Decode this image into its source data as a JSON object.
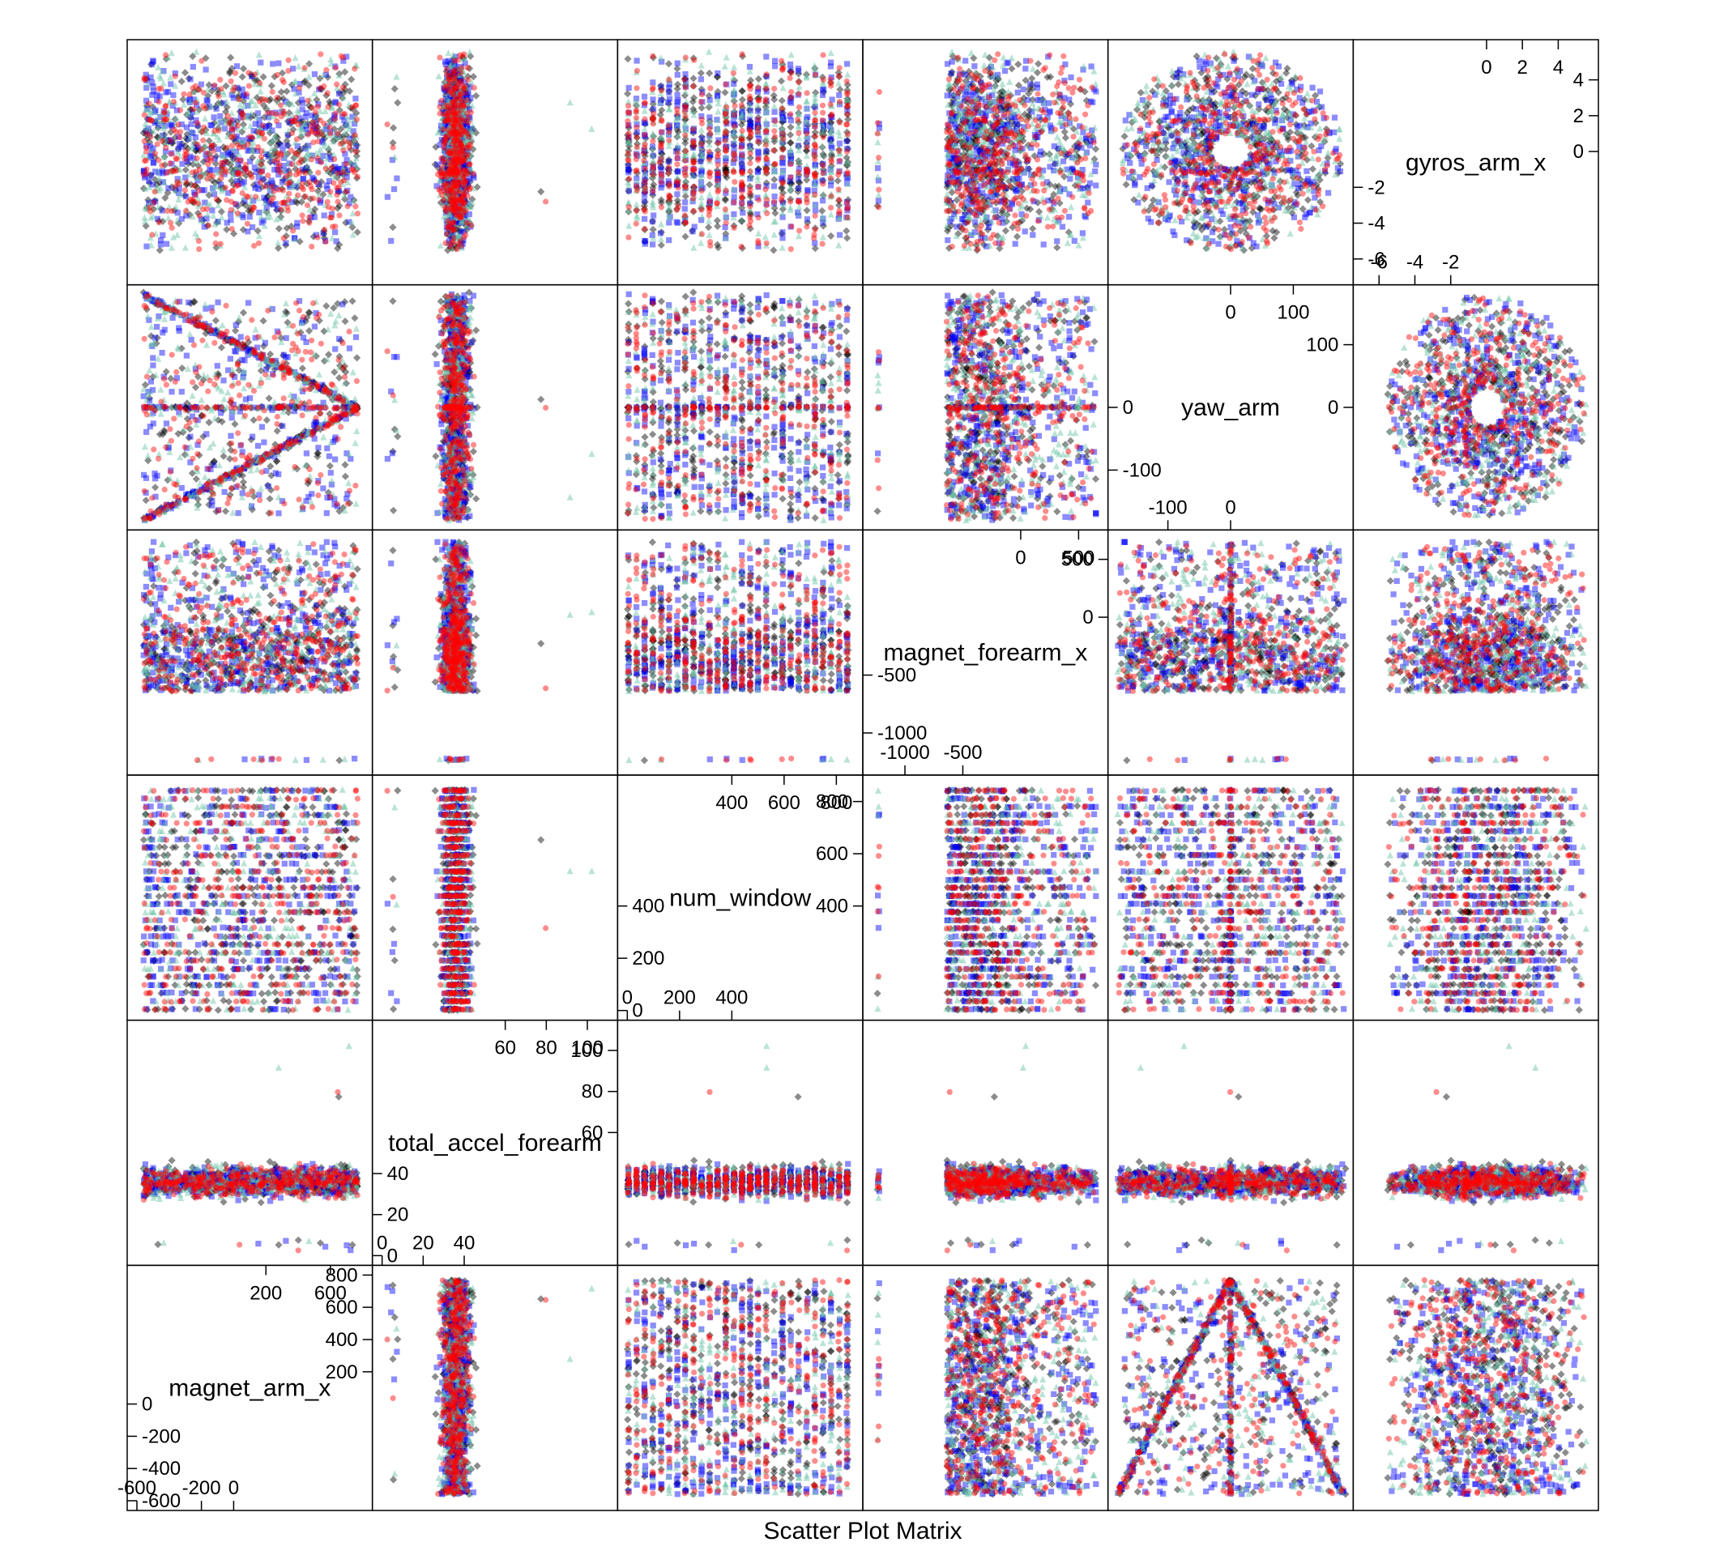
{
  "chart_data": {
    "type": "scatter",
    "subtype": "scatter-plot-matrix",
    "xlabel": "Scatter Plot Matrix",
    "point_alpha": 0.45,
    "series": [
      {
        "color": "#000000",
        "shape": "diamond"
      },
      {
        "color": "#0000ff",
        "shape": "square"
      },
      {
        "color": "#66c2a5",
        "shape": "triangle"
      },
      {
        "color": "#ff0000",
        "shape": "circle"
      }
    ],
    "variables": [
      {
        "name": "magnet_arm_x",
        "range": [
          -600,
          800
        ],
        "upper_ticks": [
          200,
          400,
          600,
          800
        ],
        "upper_labels": [
          "200",
          "400",
          "600",
          "800"
        ],
        "lower_ticks": [
          -600,
          -400,
          -200,
          0
        ],
        "lower_labels": [
          "-600",
          "-400",
          "-200",
          "0"
        ],
        "top_ticks": [
          200,
          600
        ],
        "top_labels": [
          "200",
          "600"
        ],
        "bottom_ticks": [
          -600,
          -200,
          0
        ],
        "bottom_labels": [
          "-600",
          "-200",
          "0"
        ]
      },
      {
        "name": "total_accel_forearm",
        "range": [
          0,
          110
        ],
        "upper_ticks": [
          60,
          80,
          100
        ],
        "upper_labels": [
          "60",
          "80",
          "100"
        ],
        "lower_ticks": [
          0,
          20,
          40
        ],
        "lower_labels": [
          "0",
          "20",
          "40"
        ],
        "top_ticks": [
          60,
          80,
          100
        ],
        "top_labels": [
          "60",
          "80",
          "100"
        ],
        "bottom_ticks": [
          0,
          20,
          40
        ],
        "bottom_labels": [
          "0",
          "20",
          "40"
        ]
      },
      {
        "name": "num_window",
        "range": [
          0,
          864
        ],
        "upper_ticks": [
          400,
          600,
          800
        ],
        "upper_labels": [
          "400",
          "600",
          "800"
        ],
        "lower_ticks": [
          0,
          200,
          400
        ],
        "lower_labels": [
          "0",
          "200",
          "400"
        ],
        "top_ticks": [
          400,
          600,
          800
        ],
        "top_labels": [
          "400",
          "600",
          "800"
        ],
        "bottom_ticks": [
          0,
          200,
          400
        ],
        "bottom_labels": [
          "0",
          "200",
          "400"
        ]
      },
      {
        "name": "magnet_forearm_x",
        "range": [
          -1280,
          670
        ],
        "upper_ticks": [
          0,
          500
        ],
        "upper_labels": [
          "0",
          "500"
        ],
        "lower_ticks": [
          -1000,
          -500
        ],
        "lower_labels": [
          "-1000",
          "-500"
        ],
        "top_ticks": [
          0,
          500
        ],
        "top_labels": [
          "0",
          "500"
        ],
        "bottom_ticks": [
          -1000,
          -500
        ],
        "bottom_labels": [
          "-1000",
          "-500"
        ]
      },
      {
        "name": "yaw_arm",
        "range": [
          -180,
          180
        ],
        "upper_ticks": [
          0,
          100
        ],
        "upper_labels": [
          "0",
          "100"
        ],
        "lower_ticks": [
          -100,
          0
        ],
        "lower_labels": [
          "-100",
          "0"
        ],
        "top_ticks": [
          0,
          100
        ],
        "top_labels": [
          "0",
          "100"
        ],
        "bottom_ticks": [
          -100,
          0
        ],
        "bottom_labels": [
          "-100",
          "0"
        ]
      },
      {
        "name": "gyros_arm_x",
        "range": [
          -6.9,
          5.7
        ],
        "upper_ticks": [
          0,
          2,
          4
        ],
        "upper_labels": [
          "0",
          "2",
          "4"
        ],
        "lower_ticks": [
          -6,
          -4,
          -2
        ],
        "lower_labels": [
          "-6",
          "-4",
          "-2"
        ],
        "top_ticks": [
          0,
          2,
          4
        ],
        "top_labels": [
          "0",
          "2",
          "4"
        ],
        "bottom_ticks": [
          -6,
          -4,
          -2
        ],
        "bottom_labels": [
          "-6",
          "-4",
          "-2"
        ]
      }
    ],
    "panel_patterns": {
      "magnet_arm_x|total_accel_forearm": "dense vertical cluster centered near magnet_arm_x 300, total_accel_forearm 25-45",
      "magnet_arm_x|num_window": "vertical bands of points across num_window, all magnet_arm_x values",
      "magnet_arm_x|yaw_arm": "inverted V / tent shape with apex at yaw_arm 0",
      "magnet_arm_x|gyros_arm_x": "U shaped cloud",
      "yaw_arm|gyros_arm_x": "circular ring shape around origin",
      "num_window|all": "horizontal/vertical stripe structure by window"
    }
  }
}
